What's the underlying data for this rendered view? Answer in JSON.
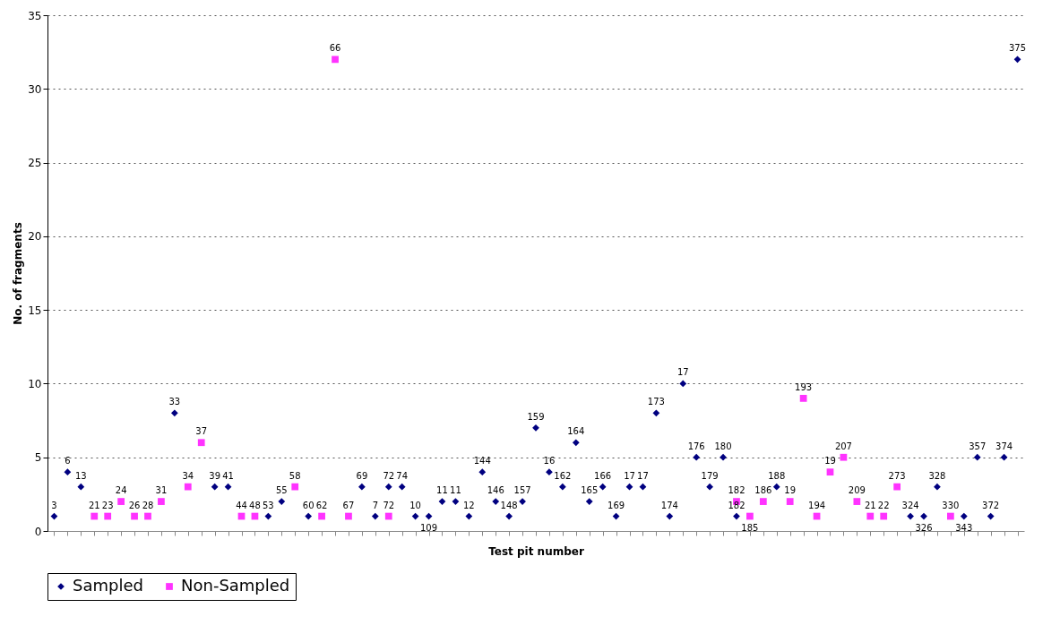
{
  "chart_data": {
    "type": "scatter",
    "xlabel": "Test pit number",
    "ylabel": "No. of fragments",
    "ylim": [
      0,
      35
    ],
    "yticks": [
      0,
      5,
      10,
      15,
      20,
      25,
      30,
      35
    ],
    "grid": "y",
    "legend": "bottom",
    "tick_labels": "y",
    "categories": [
      "3",
      "6",
      "13",
      "21",
      "23",
      "24",
      "26",
      "28",
      "31",
      "33",
      "34",
      "37",
      "39",
      "41",
      "44",
      "48",
      "53",
      "55",
      "58",
      "60",
      "62",
      "66",
      "67",
      "69",
      "7",
      "72",
      "74",
      "10",
      "109",
      "11",
      "11",
      "12",
      "144",
      "146",
      "148",
      "157",
      "159",
      "16",
      "162",
      "164",
      "165",
      "166",
      "169",
      "17",
      "17",
      "173",
      "174",
      "17",
      "176",
      "179",
      "180",
      "182",
      "185",
      "186",
      "188",
      "19",
      "193",
      "194",
      "19",
      "207",
      "209",
      "21",
      "22",
      "273",
      "324",
      "326",
      "328",
      "330",
      "343",
      "357",
      "372",
      "374",
      "375"
    ],
    "series": [
      {
        "name": "Sampled",
        "color": "#000080",
        "marker": "diamond",
        "values": [
          1,
          4,
          3,
          null,
          null,
          null,
          null,
          null,
          null,
          8,
          null,
          null,
          3,
          3,
          null,
          null,
          1,
          2,
          null,
          1,
          null,
          null,
          null,
          3,
          1,
          3,
          3,
          1,
          1,
          2,
          2,
          1,
          4,
          2,
          1,
          2,
          7,
          4,
          3,
          6,
          2,
          3,
          1,
          3,
          3,
          8,
          1,
          10,
          5,
          3,
          5,
          1,
          null,
          null,
          3,
          null,
          null,
          null,
          null,
          null,
          null,
          null,
          null,
          null,
          1,
          1,
          3,
          null,
          1,
          5,
          1,
          5,
          32
        ]
      },
      {
        "name": "Non-Sampled",
        "color": "#ff33ff",
        "marker": "square",
        "values": [
          null,
          null,
          null,
          1,
          1,
          2,
          1,
          1,
          2,
          null,
          3,
          6,
          null,
          null,
          1,
          1,
          null,
          null,
          3,
          null,
          1,
          32,
          1,
          null,
          null,
          1,
          null,
          null,
          null,
          null,
          null,
          null,
          null,
          null,
          null,
          null,
          null,
          null,
          null,
          null,
          null,
          null,
          null,
          null,
          null,
          null,
          null,
          null,
          null,
          null,
          null,
          2,
          1,
          2,
          null,
          2,
          9,
          1,
          4,
          5,
          2,
          1,
          1,
          3,
          null,
          null,
          null,
          1,
          null,
          null,
          null,
          null,
          null
        ]
      }
    ]
  }
}
